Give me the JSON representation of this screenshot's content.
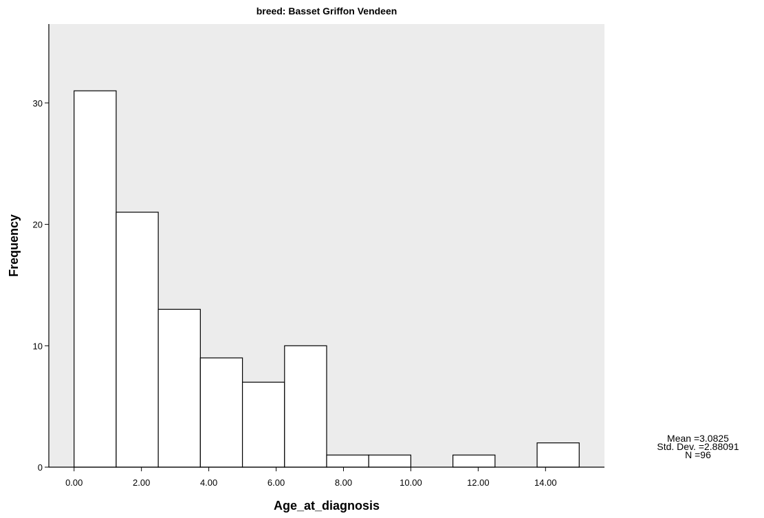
{
  "chart_data": {
    "type": "bar",
    "title": "breed: Basset Griffon Vendeen",
    "xlabel": "Age_at_diagnosis",
    "ylabel": "Frequency",
    "bins": [
      {
        "x0": 0.0,
        "x1": 1.25,
        "value": 31
      },
      {
        "x0": 1.25,
        "x1": 2.5,
        "value": 21
      },
      {
        "x0": 2.5,
        "x1": 3.75,
        "value": 13
      },
      {
        "x0": 3.75,
        "x1": 5.0,
        "value": 9
      },
      {
        "x0": 5.0,
        "x1": 6.25,
        "value": 7
      },
      {
        "x0": 6.25,
        "x1": 7.5,
        "value": 10
      },
      {
        "x0": 7.5,
        "x1": 8.75,
        "value": 1
      },
      {
        "x0": 8.75,
        "x1": 10.0,
        "value": 1
      },
      {
        "x0": 10.0,
        "x1": 11.25,
        "value": 0
      },
      {
        "x0": 11.25,
        "x1": 12.5,
        "value": 1
      },
      {
        "x0": 12.5,
        "x1": 13.75,
        "value": 0
      },
      {
        "x0": 13.75,
        "x1": 15.0,
        "value": 2
      }
    ],
    "xticks": [
      0,
      2,
      4,
      6,
      8,
      10,
      12,
      14
    ],
    "xtick_labels": [
      "0.00",
      "2.00",
      "4.00",
      "6.00",
      "8.00",
      "10.00",
      "12.00",
      "14.00"
    ],
    "yticks": [
      0,
      10,
      20,
      30
    ],
    "ytick_labels": [
      "0",
      "10",
      "20",
      "30"
    ],
    "ylim": [
      0,
      36.5
    ],
    "xlim": [
      -0.75,
      15.75
    ],
    "grid": false,
    "plot_background": "#ececec",
    "bar_fill": "#ffffff",
    "bar_stroke": "#000000"
  },
  "stats": {
    "mean": "Mean =3.0825",
    "std_dev": "Std. Dev. =2.88091",
    "n": "N =96"
  }
}
